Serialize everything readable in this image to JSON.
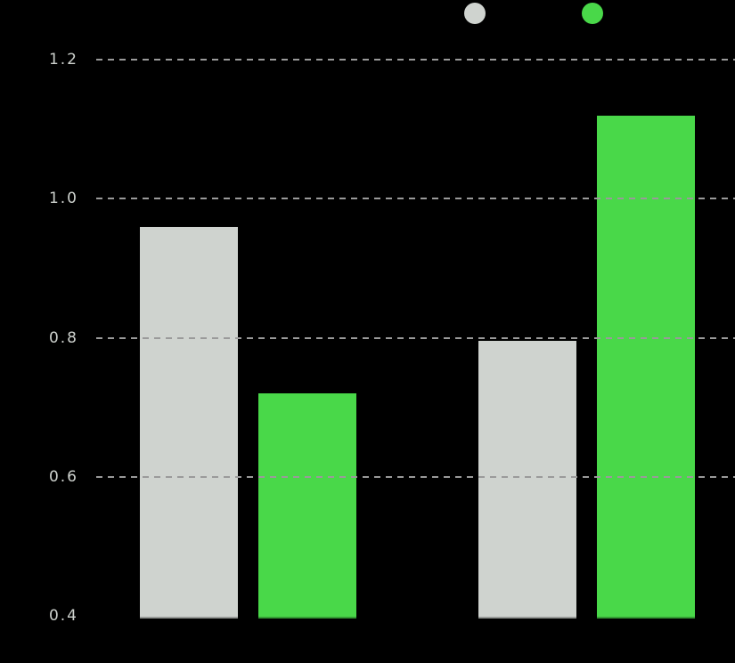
{
  "chart_data": {
    "type": "bar",
    "title": "",
    "xlabel": "",
    "ylabel": "",
    "categories": [
      "",
      ""
    ],
    "series": [
      {
        "name": "",
        "color_key": "gray",
        "color": "#cfd3cf",
        "values": [
          0.96,
          0.795
        ]
      },
      {
        "name": "",
        "color_key": "green",
        "color": "#49d849",
        "values": [
          0.72,
          1.12
        ]
      }
    ],
    "ylim": [
      0.396,
      1.24
    ],
    "yticks": [
      0.4,
      0.6,
      0.8,
      1.0,
      1.2
    ],
    "ytick_labels": [
      "0.4",
      "0.6",
      "0.8",
      "1.0",
      "1.2"
    ],
    "gridline_ticks": [
      0.6,
      0.8,
      1.0,
      1.2
    ],
    "grid_style": "dashed-horizontal-above-bars",
    "legend_position": "top-center",
    "legend": [
      {
        "marker": "circle",
        "color": "#cfd3cf",
        "label": ""
      },
      {
        "marker": "circle",
        "color": "#49d849",
        "label": ""
      }
    ]
  },
  "colors": {
    "background": "#000000",
    "gridline": "#9a9a9a",
    "tick_label": "#cdd1cd"
  }
}
